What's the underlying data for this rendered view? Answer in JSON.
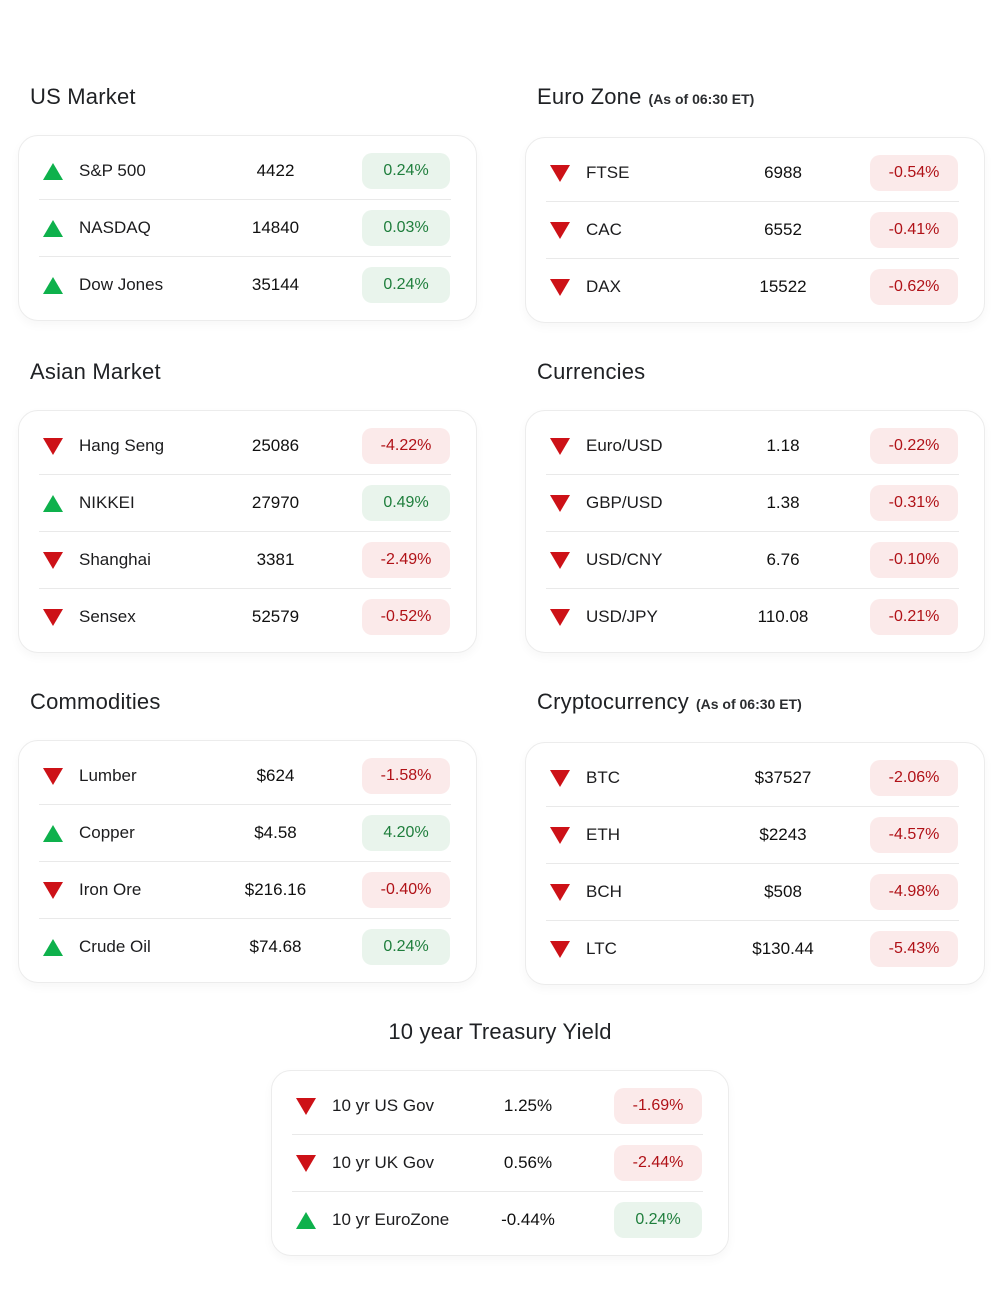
{
  "colors": {
    "up": "#0EB14C",
    "down": "#CD1117",
    "up_pill_bg": "#E9F4EC",
    "up_pill_text": "#1E7E3C",
    "down_pill_bg": "#FBEAEA",
    "down_pill_text": "#B01117"
  },
  "icons": {
    "up": "triangle-up",
    "down": "triangle-down"
  },
  "sections": [
    {
      "id": "us-market",
      "title": "US Market",
      "subtitle": "",
      "rows": [
        {
          "direction": "up",
          "label": "S&P 500",
          "value": "4422",
          "change": "0.24%"
        },
        {
          "direction": "up",
          "label": "NASDAQ",
          "value": "14840",
          "change": "0.03%"
        },
        {
          "direction": "up",
          "label": "Dow Jones",
          "value": "35144",
          "change": "0.24%"
        }
      ]
    },
    {
      "id": "euro-zone",
      "title": "Euro Zone",
      "subtitle": "(As of 06:30 ET)",
      "rows": [
        {
          "direction": "down",
          "label": "FTSE",
          "value": "6988",
          "change": "-0.54%"
        },
        {
          "direction": "down",
          "label": "CAC",
          "value": "6552",
          "change": "-0.41%"
        },
        {
          "direction": "down",
          "label": "DAX",
          "value": "15522",
          "change": "-0.62%"
        }
      ]
    },
    {
      "id": "asian-market",
      "title": "Asian Market",
      "subtitle": "",
      "rows": [
        {
          "direction": "down",
          "label": "Hang Seng",
          "value": "25086",
          "change": "-4.22%"
        },
        {
          "direction": "up",
          "label": "NIKKEI",
          "value": "27970",
          "change": "0.49%"
        },
        {
          "direction": "down",
          "label": "Shanghai",
          "value": "3381",
          "change": "-2.49%"
        },
        {
          "direction": "down",
          "label": "Sensex",
          "value": "52579",
          "change": "-0.52%"
        }
      ]
    },
    {
      "id": "currencies",
      "title": "Currencies",
      "subtitle": "",
      "rows": [
        {
          "direction": "down",
          "label": "Euro/USD",
          "value": "1.18",
          "change": "-0.22%"
        },
        {
          "direction": "down",
          "label": "GBP/USD",
          "value": "1.38",
          "change": "-0.31%"
        },
        {
          "direction": "down",
          "label": "USD/CNY",
          "value": "6.76",
          "change": "-0.10%"
        },
        {
          "direction": "down",
          "label": "USD/JPY",
          "value": "110.08",
          "change": "-0.21%"
        }
      ]
    },
    {
      "id": "commodities",
      "title": "Commodities",
      "subtitle": "",
      "rows": [
        {
          "direction": "down",
          "label": "Lumber",
          "value": "$624",
          "change": "-1.58%"
        },
        {
          "direction": "up",
          "label": "Copper",
          "value": "$4.58",
          "change": "4.20%"
        },
        {
          "direction": "down",
          "label": "Iron Ore",
          "value": "$216.16",
          "change": "-0.40%"
        },
        {
          "direction": "up",
          "label": "Crude Oil",
          "value": "$74.68",
          "change": "0.24%"
        }
      ]
    },
    {
      "id": "cryptocurrency",
      "title": "Cryptocurrency",
      "subtitle": "(As of 06:30 ET)",
      "rows": [
        {
          "direction": "down",
          "label": "BTC",
          "value": "$37527",
          "change": "-2.06%"
        },
        {
          "direction": "down",
          "label": "ETH",
          "value": "$2243",
          "change": "-4.57%"
        },
        {
          "direction": "down",
          "label": "BCH",
          "value": "$508",
          "change": "-4.98%"
        },
        {
          "direction": "down",
          "label": "LTC",
          "value": "$130.44",
          "change": "-5.43%"
        }
      ]
    }
  ],
  "treasury": {
    "id": "treasury-yield",
    "title": "10 year Treasury Yield",
    "rows": [
      {
        "direction": "down",
        "label": "10 yr US Gov",
        "value": "1.25%",
        "change": "-1.69%"
      },
      {
        "direction": "down",
        "label": "10 yr UK Gov",
        "value": "0.56%",
        "change": "-2.44%"
      },
      {
        "direction": "up",
        "label": "10 yr EuroZone",
        "value": "-0.44%",
        "change": "0.24%"
      }
    ]
  }
}
